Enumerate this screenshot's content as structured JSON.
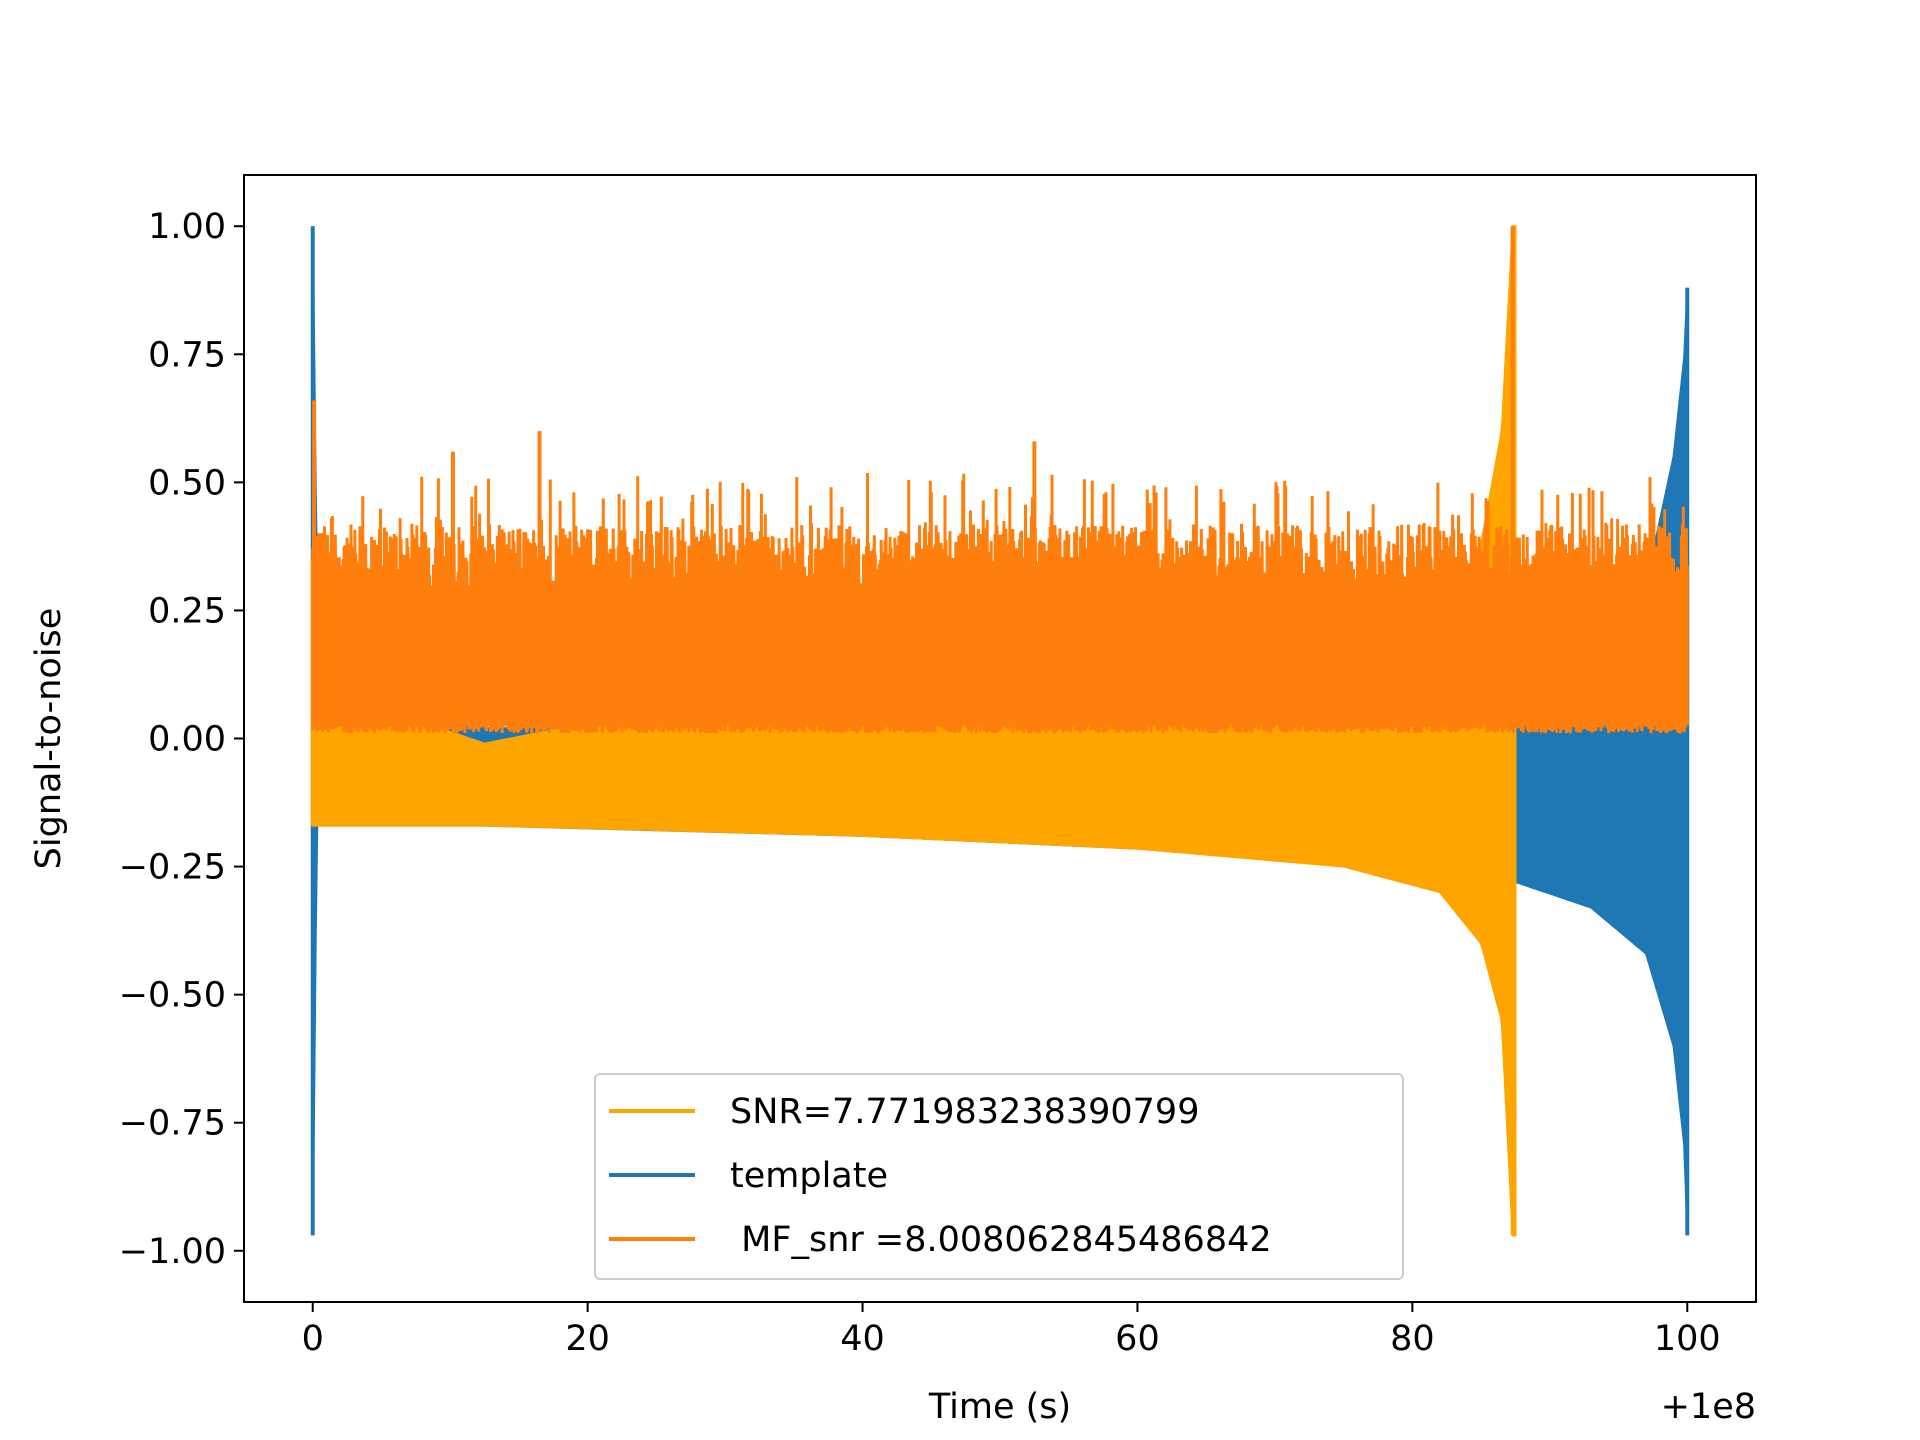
{
  "chart_data": {
    "type": "line",
    "xlabel": "Time (s)",
    "ylabel": "Signal-to-noise",
    "x_offset_label": "+1e8",
    "xlim": [
      -5,
      105
    ],
    "ylim": [
      -1.1,
      1.1
    ],
    "xticks": [
      0,
      20,
      40,
      60,
      80,
      100
    ],
    "xtick_labels": [
      "0",
      "20",
      "40",
      "60",
      "80",
      "100"
    ],
    "yticks": [
      1.0,
      0.75,
      0.5,
      0.25,
      0.0,
      -0.25,
      -0.5,
      -0.75,
      -1.0
    ],
    "ytick_labels": [
      "1.00",
      "0.75",
      "0.50",
      "0.25",
      "0.00",
      "−0.25",
      "−0.50",
      "−0.75",
      "−1.00"
    ],
    "grid": false,
    "legend_position": "lower center",
    "series": [
      {
        "name": "SNR=7.771983238390799",
        "color": "#ffa500",
        "kind": "oscillating-envelope",
        "x_start": 0.0,
        "x_end": 87.5,
        "points": [
          {
            "x": 0.0,
            "upper": 0.35,
            "lower": -0.17
          },
          {
            "x": 0.5,
            "upper": 0.1,
            "lower": -0.17
          },
          {
            "x": 12.5,
            "upper": -0.01,
            "lower": -0.17
          },
          {
            "x": 20,
            "upper": 0.03,
            "lower": -0.175
          },
          {
            "x": 40,
            "upper": 0.05,
            "lower": -0.19
          },
          {
            "x": 60,
            "upper": 0.09,
            "lower": -0.215
          },
          {
            "x": 75,
            "upper": 0.14,
            "lower": -0.25
          },
          {
            "x": 82,
            "upper": 0.2,
            "lower": -0.3
          },
          {
            "x": 85,
            "upper": 0.38,
            "lower": -0.4
          },
          {
            "x": 86.5,
            "upper": 0.6,
            "lower": -0.55
          },
          {
            "x": 87.3,
            "upper": 1.0,
            "lower": -0.97
          }
        ]
      },
      {
        "name": "template",
        "color": "#1f77b4",
        "kind": "oscillating-envelope",
        "x_start": 0.0,
        "x_end": 100.0,
        "points": [
          {
            "x": 0.0,
            "upper": 1.0,
            "lower": -0.97
          },
          {
            "x": 0.3,
            "upper": 0.3,
            "lower": -0.17
          },
          {
            "x": 12.5,
            "upper": 0.02,
            "lower": -0.17
          },
          {
            "x": 40,
            "upper": 0.02,
            "lower": -0.19
          },
          {
            "x": 60,
            "upper": 0.03,
            "lower": -0.215
          },
          {
            "x": 80,
            "upper": 0.05,
            "lower": -0.25
          },
          {
            "x": 87.5,
            "upper": 0.07,
            "lower": -0.28
          },
          {
            "x": 93,
            "upper": 0.12,
            "lower": -0.33
          },
          {
            "x": 97,
            "upper": 0.3,
            "lower": -0.42
          },
          {
            "x": 99,
            "upper": 0.55,
            "lower": -0.6
          },
          {
            "x": 99.8,
            "upper": 0.75,
            "lower": -0.8
          },
          {
            "x": 100.0,
            "upper": 0.88,
            "lower": -0.97
          }
        ]
      },
      {
        "name": " MF_snr =8.008062845486842",
        "color": "#ff7f0e",
        "kind": "noise-band",
        "x_start": 0.0,
        "x_end": 100.0,
        "band_low": 0.0,
        "band_high": 0.38,
        "peaks": [
          {
            "x": 0.1,
            "y": 0.66
          },
          {
            "x": 10.2,
            "y": 0.56
          },
          {
            "x": 16.5,
            "y": 0.6
          },
          {
            "x": 52.5,
            "y": 0.58
          },
          {
            "x": 87.3,
            "y": 1.0
          }
        ]
      }
    ]
  }
}
